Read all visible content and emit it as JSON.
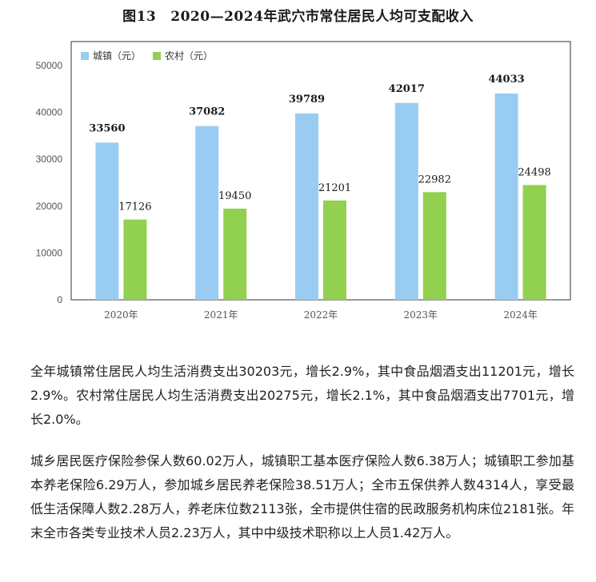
{
  "figure": {
    "number": "图13",
    "title": "2020—2024年武穴市常住居民人均可支配收入"
  },
  "chart_data": {
    "type": "bar",
    "categories": [
      "2020年",
      "2021年",
      "2022年",
      "2023年",
      "2024年"
    ],
    "series": [
      {
        "name": "城镇（元）",
        "color": "#99ccf2",
        "values": [
          33560,
          37082,
          39789,
          42017,
          44033
        ]
      },
      {
        "name": "农村（元）",
        "color": "#92d050",
        "values": [
          17126,
          19450,
          21201,
          22982,
          24498
        ]
      }
    ],
    "y_ticks": [
      0,
      10000,
      20000,
      30000,
      40000,
      50000
    ],
    "ylim": [
      0,
      50000
    ],
    "legend_position": "top-left",
    "grid": false
  },
  "paragraphs": [
    "全年城镇常住居民人均生活消费支出30203元，增长2.9%，其中食品烟酒支出11201元，增长2.9%。农村常住居民人均生活消费支出20275元，增长2.1%，其中食品烟酒支出7701元，增长2.0%。",
    "城乡居民医疗保险参保人数60.02万人，城镇职工基本医疗保险人数6.38万人；城镇职工参加基本养老保险6.29万人，参加城乡居民养老保险38.51万人；全市五保供养人数4314人，享受最低生活保障人数2.28万人，养老床位数2113张，全市提供住宿的民政服务机构床位2181张。年末全市各类专业技术人员2.23万人，其中中级技术职称以上人员1.42万人。"
  ]
}
